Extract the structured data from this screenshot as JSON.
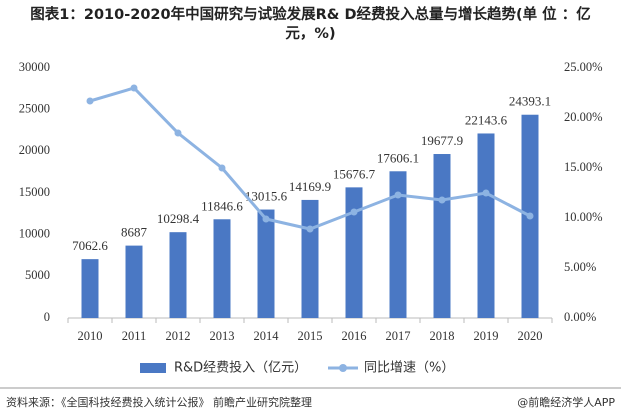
{
  "chart_data": {
    "type": "bar-line",
    "title": "图表1：2010-2020年中国研究与试验发展R& D经费投入总量与增长趋势(单 位 ：亿元，%)",
    "categories": [
      "2010",
      "2011",
      "2012",
      "2013",
      "2014",
      "2015",
      "2016",
      "2017",
      "2018",
      "2019",
      "2020"
    ],
    "series": [
      {
        "name": "R&D经费投入（亿元）",
        "type": "bar",
        "color": "#4a78c4",
        "axis": "y",
        "values": [
          7062.6,
          8687,
          10298.4,
          11846.6,
          13015.6,
          14169.9,
          15676.7,
          17606.1,
          19677.9,
          22143.6,
          24393.1
        ]
      },
      {
        "name": "同比增速（%）",
        "type": "line",
        "color": "#8db3e2",
        "axis": "y2",
        "values": [
          21.7,
          23.0,
          18.5,
          15.0,
          9.9,
          8.9,
          10.6,
          12.3,
          11.8,
          12.5,
          10.2
        ]
      }
    ],
    "ylim": [
      0,
      30000
    ],
    "yticks": [
      0,
      5000,
      10000,
      15000,
      20000,
      25000,
      30000
    ],
    "y2lim": [
      0,
      25
    ],
    "y2ticks": [
      {
        "value": 0,
        "label": "0.00%"
      },
      {
        "value": 5,
        "label": "5.00%"
      },
      {
        "value": 10,
        "label": "10.00%"
      },
      {
        "value": 15,
        "label": "15.00%"
      },
      {
        "value": 20,
        "label": "20.00%"
      },
      {
        "value": 25,
        "label": "25.00%"
      }
    ],
    "source": "资料来源：《全国科技经费投入统计公报》 前瞻产业研究院整理",
    "brand": "@前瞻经济学人APP"
  }
}
